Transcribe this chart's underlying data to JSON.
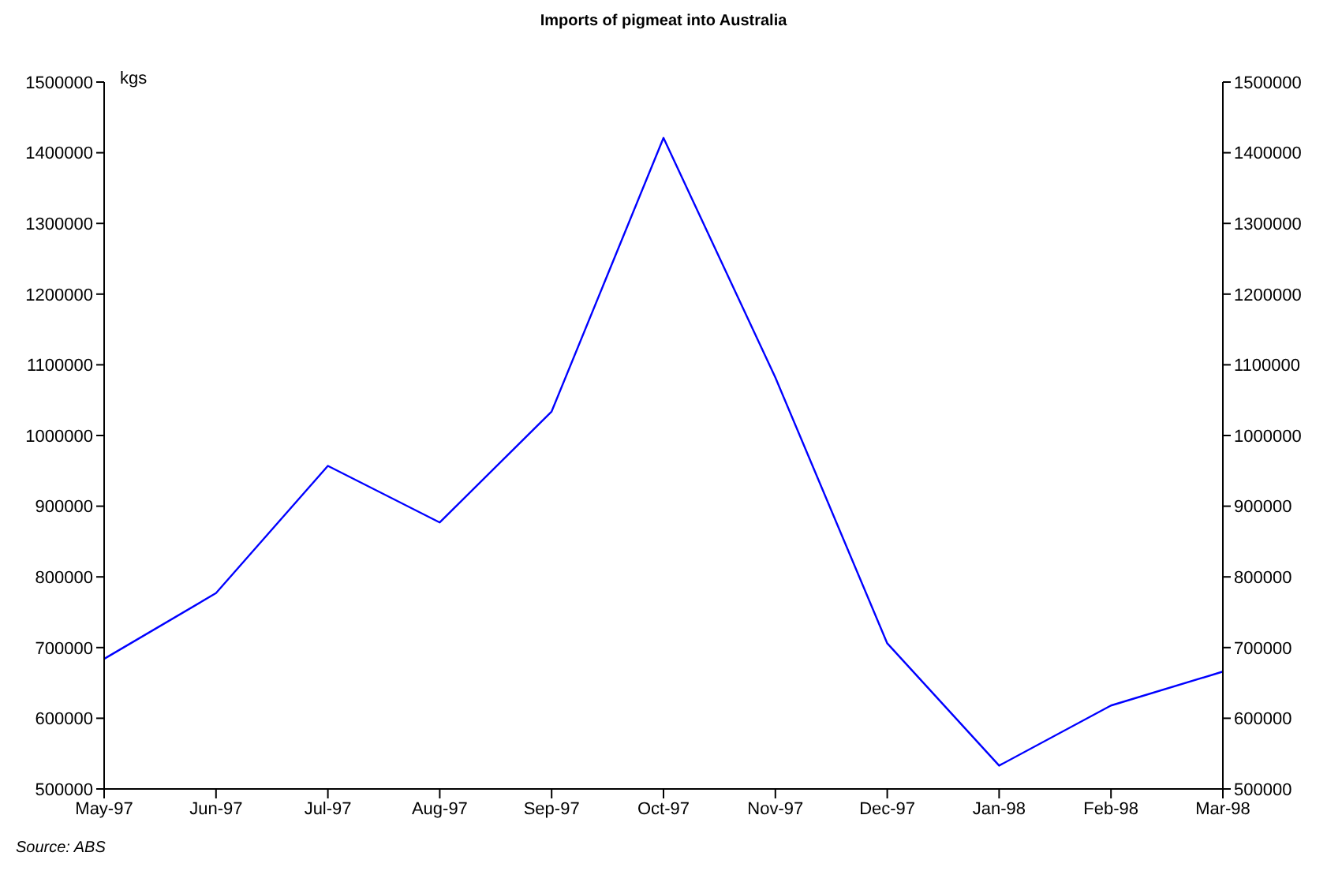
{
  "chart_data": {
    "type": "line",
    "title": "Imports of pigmeat into Australia",
    "ylabel": "kgs",
    "annotations": [
      "Source: ABS"
    ],
    "categories": [
      "May-97",
      "Jun-97",
      "Jul-97",
      "Aug-97",
      "Sep-97",
      "Oct-97",
      "Nov-97",
      "Dec-97",
      "Jan-98",
      "Feb-98",
      "Mar-98"
    ],
    "series": [
      {
        "color": "#0000ff",
        "values": [
          684000,
          777000,
          957000,
          877000,
          1034000,
          1421000,
          1082000,
          706000,
          533000,
          618000,
          666000
        ]
      }
    ],
    "ylim": [
      500000,
      1500000
    ],
    "yticks": [
      500000,
      600000,
      700000,
      800000,
      900000,
      1000000,
      1100000,
      1200000,
      1300000,
      1400000,
      1500000
    ],
    "y2lim": [
      500000,
      1500000
    ],
    "y2ticks": [
      500000,
      600000,
      700000,
      800000,
      900000,
      1000000,
      1100000,
      1200000,
      1300000,
      1400000,
      1500000
    ],
    "grid": false,
    "legend": false,
    "marker": "none",
    "line_style": "solid"
  }
}
